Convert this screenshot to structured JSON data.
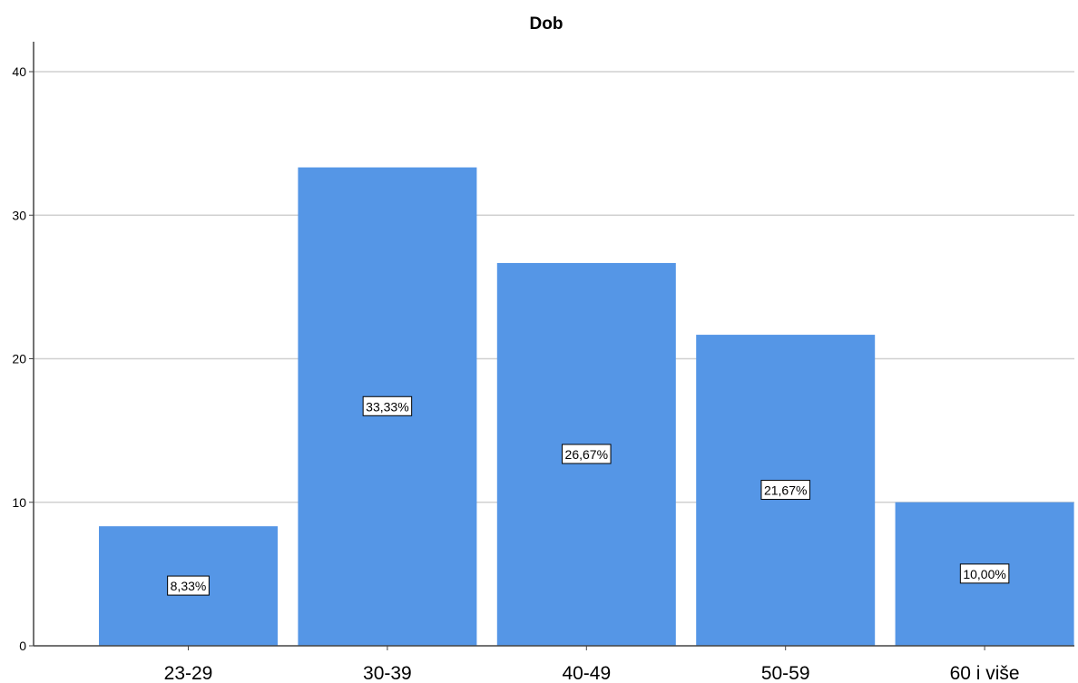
{
  "chart_data": {
    "type": "bar",
    "title": "Dob",
    "categories": [
      "23-29",
      "30-39",
      "40-49",
      "50-59",
      "60 i više"
    ],
    "values": [
      8.33,
      33.33,
      26.67,
      21.67,
      10.0
    ],
    "data_labels": [
      "8,33%",
      "33,33%",
      "26,67%",
      "21,67%",
      "10,00%"
    ],
    "y_ticks": [
      0,
      10,
      20,
      30,
      40
    ],
    "ylim": [
      0,
      42
    ],
    "xlabel": "",
    "ylabel": "",
    "grid": true,
    "legend": "none",
    "colors": {
      "bar": "#5596e6",
      "grid": "#d0d0d0",
      "axis": "#444444"
    }
  }
}
